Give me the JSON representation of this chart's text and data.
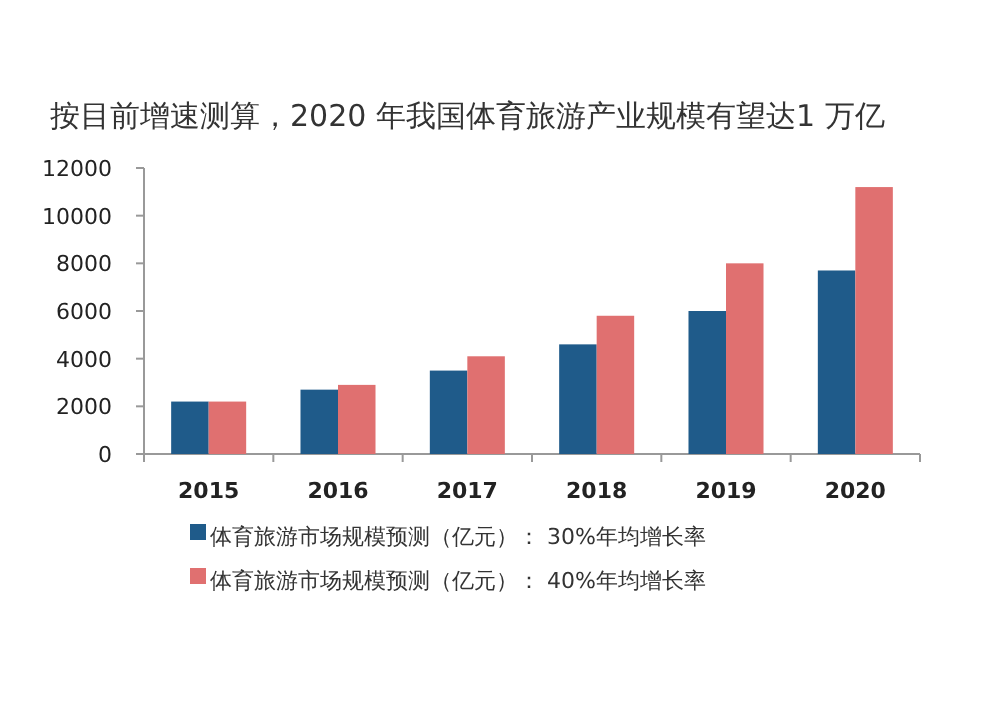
{
  "chart_data": {
    "type": "bar",
    "title": "按目前增速测算，2020 年我国体育旅游产业规模有望达1 万亿",
    "categories": [
      "2015",
      "2016",
      "2017",
      "2018",
      "2019",
      "2020"
    ],
    "series": [
      {
        "name": "体育旅游市场规模预测（亿元）： 30%年均增长率",
        "color": "#1f5b8a",
        "values": [
          2200,
          2700,
          3500,
          4600,
          6000,
          7700
        ]
      },
      {
        "name": "体育旅游市场规模预测（亿元）： 40%年均增长率",
        "color": "#e07070",
        "values": [
          2200,
          2900,
          4100,
          5800,
          8000,
          11200
        ]
      }
    ],
    "ylim": [
      0,
      12000
    ],
    "yticks": [
      0,
      2000,
      4000,
      6000,
      8000,
      10000,
      12000
    ],
    "grid": false,
    "legend": "bottom"
  }
}
